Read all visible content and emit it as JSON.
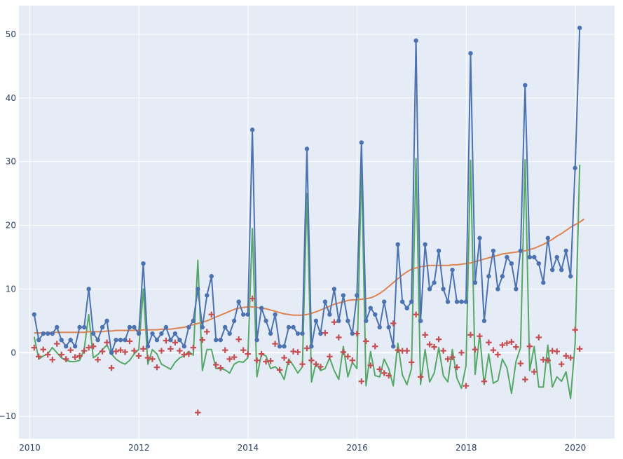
{
  "chart_data": {
    "type": "line",
    "title": "",
    "xlabel": "",
    "ylabel": "",
    "xlim": [
      2009.8,
      2020.72
    ],
    "ylim": [
      -13.5,
      54.5
    ],
    "grid": true,
    "x_ticks": [
      "2010",
      "2012",
      "2014",
      "2016",
      "2018",
      "2020"
    ],
    "y_ticks": [
      "−10",
      "0",
      "10",
      "20",
      "30",
      "40",
      "50"
    ],
    "colors": {
      "background": "#e5ecf6",
      "grid": "#ffffff",
      "observed": "#4c72b0",
      "trend": "#dd8452",
      "seasonal": "#55a868",
      "residual": "#c44e52"
    },
    "x_start": 2010.08,
    "x_step": 0.08333,
    "series": [
      {
        "name": "",
        "mode": "lines+markers",
        "marker": "circle",
        "color": "#4c72b0",
        "values": [
          6,
          2,
          3,
          3,
          3,
          4,
          2,
          1,
          2,
          1,
          4,
          4,
          10,
          3,
          2,
          4,
          5,
          0,
          2,
          2,
          2,
          4,
          4,
          3,
          14,
          1,
          3,
          2,
          3,
          4,
          2,
          3,
          2,
          1,
          4,
          5,
          10,
          4,
          9,
          12,
          2,
          2,
          4,
          3,
          5,
          8,
          6,
          6,
          35,
          2,
          7,
          5,
          3,
          6,
          1,
          1,
          4,
          4,
          3,
          3,
          32,
          1,
          5,
          3,
          8,
          6,
          10,
          5,
          9,
          5,
          3,
          9,
          33,
          5,
          7,
          6,
          4,
          8,
          4,
          1,
          17,
          8,
          7,
          8,
          49,
          5,
          17,
          10,
          11,
          16,
          10,
          8,
          13,
          8,
          8,
          8,
          47,
          11,
          18,
          5,
          12,
          16,
          10,
          12,
          15,
          14,
          10,
          16,
          42,
          15,
          15,
          14,
          11,
          18,
          13,
          15,
          13,
          16,
          12,
          29,
          51
        ]
      },
      {
        "name": "",
        "mode": "lines",
        "color": "#dd8452",
        "values": [
          3.1,
          3.1,
          3.1,
          3.1,
          3.2,
          3.2,
          3.2,
          3.2,
          3.2,
          3.2,
          3.2,
          3.2,
          3.3,
          3.3,
          3.3,
          3.3,
          3.4,
          3.4,
          3.5,
          3.5,
          3.5,
          3.5,
          3.5,
          3.5,
          3.6,
          3.6,
          3.6,
          3.6,
          3.7,
          3.7,
          3.7,
          3.8,
          3.9,
          4.0,
          4.2,
          4.4,
          4.6,
          4.8,
          5.0,
          5.3,
          5.6,
          5.9,
          6.2,
          6.5,
          6.8,
          7.0,
          7.1,
          7.2,
          7.2,
          7.1,
          7.0,
          6.9,
          6.7,
          6.5,
          6.3,
          6.1,
          6.0,
          5.9,
          5.9,
          5.9,
          6.0,
          6.2,
          6.4,
          6.7,
          7.0,
          7.3,
          7.6,
          7.8,
          8.0,
          8.2,
          8.3,
          8.3,
          8.4,
          8.5,
          8.6,
          8.9,
          9.3,
          9.8,
          10.4,
          11.0,
          11.6,
          12.2,
          12.7,
          13.1,
          13.3,
          13.5,
          13.6,
          13.7,
          13.7,
          13.7,
          13.7,
          13.7,
          13.8,
          13.8,
          13.9,
          14.0,
          14.1,
          14.3,
          14.5,
          14.7,
          14.9,
          15.1,
          15.3,
          15.5,
          15.6,
          15.7,
          15.8,
          15.9,
          16.0,
          16.2,
          16.4,
          16.7,
          17.0,
          17.4,
          17.8,
          18.3,
          18.7,
          19.2,
          19.7,
          20.1,
          20.5,
          21.0
        ]
      },
      {
        "name": "",
        "mode": "lines",
        "color": "#55a868",
        "values": [
          2.5,
          -1.0,
          -0.5,
          -0.2,
          0.8,
          0.0,
          -0.8,
          -1.2,
          -1.4,
          -1.4,
          -1.2,
          0.5,
          6.0,
          -0.8,
          -0.3,
          0.5,
          1.2,
          -0.2,
          -1.0,
          -1.5,
          -1.8,
          -1.2,
          -0.2,
          0.5,
          10.0,
          -1.8,
          0.5,
          -0.2,
          -1.8,
          -2.2,
          -2.6,
          -1.5,
          -0.8,
          -0.5,
          0.2,
          -0.4,
          14.5,
          -2.8,
          0.5,
          0.5,
          -2.5,
          -2.5,
          -2.7,
          -3.2,
          -1.8,
          -1.4,
          -1.5,
          -0.8,
          19.5,
          -3.8,
          -0.2,
          -0.5,
          -2.5,
          -2.2,
          -2.8,
          -4.2,
          -1.0,
          -2.0,
          -3.2,
          -2.2,
          25.0,
          -4.6,
          -1.6,
          -2.8,
          -2.5,
          -0.8,
          -2.8,
          -4.2,
          1.0,
          -3.8,
          -1.5,
          -2.5,
          29.5,
          -5.2,
          0.2,
          -3.6,
          -3.8,
          -1.0,
          -2.5,
          -5.2,
          1.5,
          -3.5,
          -5.0,
          -2.5,
          30.5,
          -5.0,
          0.5,
          -4.6,
          -3.2,
          0.8,
          -3.6,
          -4.6,
          0.5,
          -4.0,
          -5.6,
          -2.0,
          30.2,
          -3.4,
          2.8,
          -5.0,
          -0.2,
          -4.8,
          -4.4,
          -1.0,
          -2.4,
          -6.4,
          -1.4,
          0.8,
          30.3,
          -2.8,
          1.0,
          -5.4,
          -5.4,
          1.2,
          -5.4,
          -3.8,
          -4.5,
          -3.0,
          -7.2,
          1.5,
          29.5
        ]
      },
      {
        "name": "",
        "mode": "markers",
        "marker": "cross",
        "color": "#c44e52",
        "values": [
          0.8,
          -0.6,
          0.5,
          -0.3,
          -1.1,
          1.4,
          -0.3,
          -1.0,
          0.4,
          -0.7,
          -0.5,
          0.3,
          0.8,
          1.0,
          -1.1,
          0.2,
          1.6,
          -2.4,
          0.2,
          0.4,
          0.1,
          1.8,
          0.3,
          -0.5,
          0.6,
          -0.8,
          -1.0,
          -2.3,
          0.3,
          1.9,
          0.6,
          1.6,
          0.3,
          -0.3,
          -0.2,
          0.8,
          -9.4,
          2.0,
          3.3,
          6.0,
          -1.9,
          -2.4,
          0.4,
          -1.0,
          -0.7,
          2.1,
          0.4,
          -0.2,
          8.5,
          -1.2,
          -0.2,
          -1.4,
          -1.3,
          1.4,
          -2.7,
          -0.8,
          -1.5,
          0.2,
          0.1,
          -1.8,
          0.7,
          -1.2,
          -1.8,
          -2.2,
          3.1,
          -0.6,
          4.8,
          2.4,
          0.1,
          -0.6,
          -1.2,
          3.0,
          -4.5,
          1.8,
          -2.0,
          1.0,
          -2.6,
          -3.2,
          -3.6,
          4.6,
          0.4,
          0.3,
          0.3,
          -1.5,
          6.0,
          -3.8,
          2.8,
          1.3,
          0.9,
          2.1,
          0.3,
          -1.0,
          -0.7,
          -2.3,
          0.0,
          -5.2,
          2.8,
          0.5,
          2.6,
          -4.5,
          1.6,
          0.4,
          -0.3,
          1.2,
          1.5,
          1.7,
          0.9,
          -1.7,
          -4.2,
          1.0,
          -3.0,
          2.4,
          -1.1,
          -1.2,
          0.3,
          0.2,
          -1.8,
          -0.5,
          -0.8,
          3.6,
          0.6
        ]
      }
    ]
  }
}
